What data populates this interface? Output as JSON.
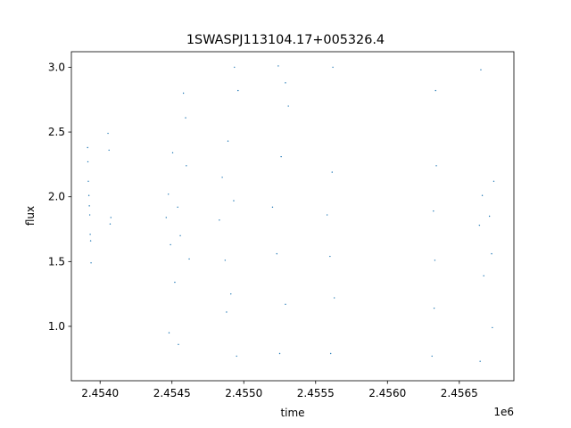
{
  "chart_data": {
    "type": "scatter",
    "title": "1SWASPJ113104.17+005326.4",
    "xlabel": "time",
    "ylabel": "flux",
    "x_offset_label": "1e6",
    "xlim": [
      2453800,
      2456880
    ],
    "ylim": [
      0.58,
      3.12
    ],
    "x_ticks": [
      2454000,
      2454500,
      2455000,
      2455500,
      2456000,
      2456500
    ],
    "x_tick_labels": [
      "2.4540",
      "2.4545",
      "2.4550",
      "2.4555",
      "2.4560",
      "2.4565"
    ],
    "y_ticks": [
      1.0,
      1.5,
      2.0,
      2.5,
      3.0
    ],
    "y_tick_labels": [
      "1.0",
      "1.5",
      "2.0",
      "2.5",
      "3.0"
    ],
    "grid": false,
    "marker_color": "#1f77b4",
    "series": [
      {
        "values": [
          [
            2453913,
            2.38
          ],
          [
            2453915,
            2.27
          ],
          [
            2453918,
            2.12
          ],
          [
            2453922,
            2.01
          ],
          [
            2453925,
            1.93
          ],
          [
            2453928,
            1.86
          ],
          [
            2453931,
            1.71
          ],
          [
            2453934,
            1.66
          ],
          [
            2453937,
            1.49
          ],
          [
            2454055,
            2.49
          ],
          [
            2454062,
            2.36
          ],
          [
            2454070,
            1.79
          ],
          [
            2454075,
            1.84
          ],
          [
            2454460,
            1.84
          ],
          [
            2454475,
            2.02
          ],
          [
            2454490,
            1.63
          ],
          [
            2454505,
            2.34
          ],
          [
            2454520,
            1.34
          ],
          [
            2454540,
            1.92
          ],
          [
            2454558,
            1.7
          ],
          [
            2454580,
            2.8
          ],
          [
            2454600,
            2.24
          ],
          [
            2454620,
            1.52
          ],
          [
            2454480,
            0.95
          ],
          [
            2454545,
            0.86
          ],
          [
            2454595,
            2.61
          ],
          [
            2454830,
            1.82
          ],
          [
            2454850,
            2.15
          ],
          [
            2454870,
            1.51
          ],
          [
            2454890,
            2.43
          ],
          [
            2454910,
            1.25
          ],
          [
            2454930,
            1.97
          ],
          [
            2454950,
            0.77
          ],
          [
            2454935,
            3.0
          ],
          [
            2454960,
            2.82
          ],
          [
            2454880,
            1.11
          ],
          [
            2455200,
            1.92
          ],
          [
            2455230,
            1.56
          ],
          [
            2455260,
            2.31
          ],
          [
            2455290,
            1.17
          ],
          [
            2455310,
            2.7
          ],
          [
            2455250,
            0.79
          ],
          [
            2455290,
            2.88
          ],
          [
            2455240,
            3.01
          ],
          [
            2455580,
            1.86
          ],
          [
            2455600,
            1.54
          ],
          [
            2455615,
            2.19
          ],
          [
            2455630,
            1.22
          ],
          [
            2455620,
            3.0
          ],
          [
            2455605,
            0.79
          ],
          [
            2456320,
            1.89
          ],
          [
            2456330,
            1.51
          ],
          [
            2456340,
            2.24
          ],
          [
            2456325,
            1.14
          ],
          [
            2456335,
            2.82
          ],
          [
            2456310,
            0.77
          ],
          [
            2456640,
            1.78
          ],
          [
            2456660,
            2.01
          ],
          [
            2456670,
            1.39
          ],
          [
            2456650,
            2.98
          ],
          [
            2456645,
            0.73
          ],
          [
            2456710,
            1.85
          ],
          [
            2456725,
            1.56
          ],
          [
            2456740,
            2.12
          ],
          [
            2456730,
            0.99
          ]
        ]
      }
    ]
  }
}
